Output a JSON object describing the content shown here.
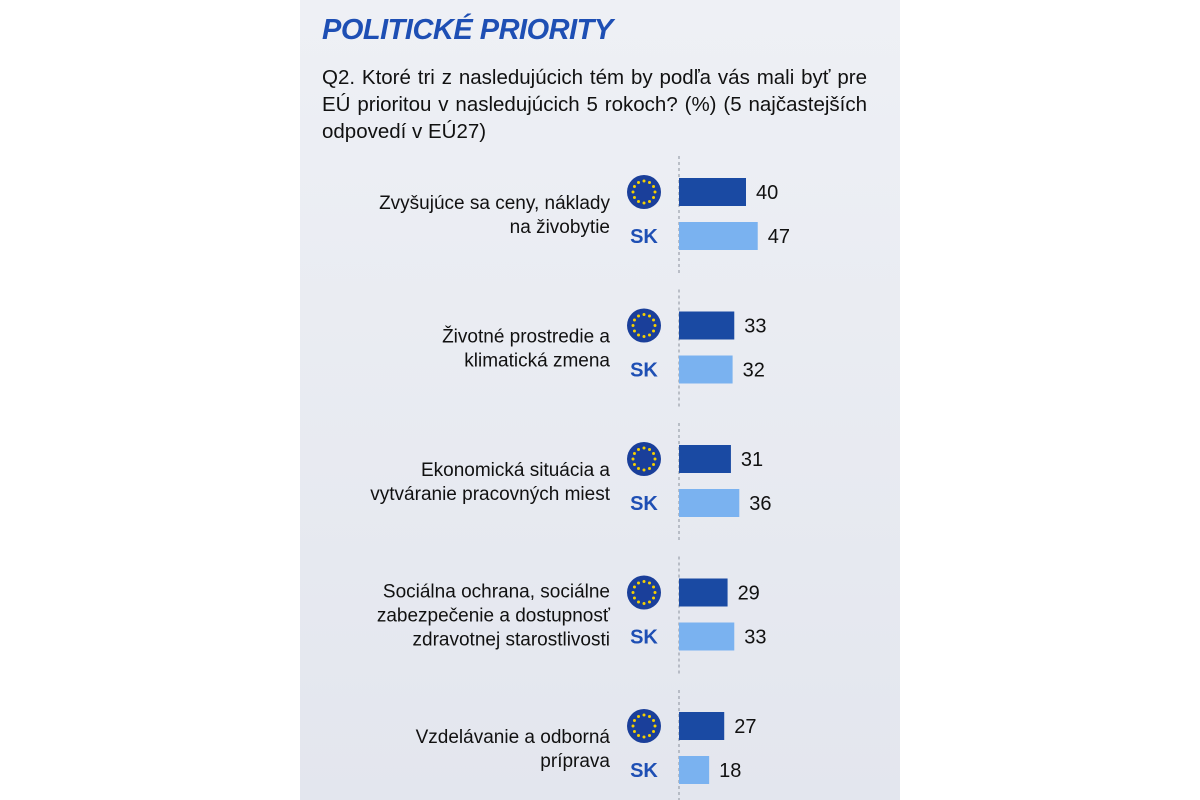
{
  "title": "POLITICKÉ PRIORITY",
  "question": "Q2. Ktoré tri z nasledujúcich tém by podľa vás mali byť pre EÚ prioritou v nasledujúcich 5 rokoch? (%) (5 najčastejších odpovedí v EÚ27)",
  "colors": {
    "eu_bar": "#1a4aa3",
    "sk_bar": "#7ab2f0",
    "title": "#1e4fb4",
    "eu_flag": "#1a3f9a",
    "eu_star": "#f5d000",
    "background": "#e8eaf1"
  },
  "icons": [
    "eu-flag-icon"
  ],
  "chart_data": {
    "type": "bar",
    "orientation": "horizontal",
    "categories": [
      "Zvyšujúce sa ceny, náklady na živobytie",
      "Životné prostredie a klimatická zmena",
      "Ekonomická situácia a vytváranie pracovných miest",
      "Sociálna ochrana, sociálne zabezpečenie a dostupnosť zdravotnej starostlivosti",
      "Vzdelávanie a odborná príprava"
    ],
    "category_lines": [
      [
        "Zvyšujúce sa ceny, náklady",
        "na živobytie"
      ],
      [
        "Životné prostredie a",
        "klimatická zmena"
      ],
      [
        "Ekonomická situácia a",
        "vytváranie pracovných miest"
      ],
      [
        "Sociálna ochrana, sociálne",
        "zabezpečenie a dostupnosť",
        "zdravotnej starostlivosti"
      ],
      [
        "Vzdelávanie a odborná",
        "príprava"
      ]
    ],
    "series": [
      {
        "values": [
          40,
          33,
          31,
          29,
          27
        ]
      },
      {
        "name": "SK",
        "values": [
          47,
          32,
          36,
          33,
          18
        ]
      }
    ],
    "data_labels": true,
    "grid": false
  }
}
